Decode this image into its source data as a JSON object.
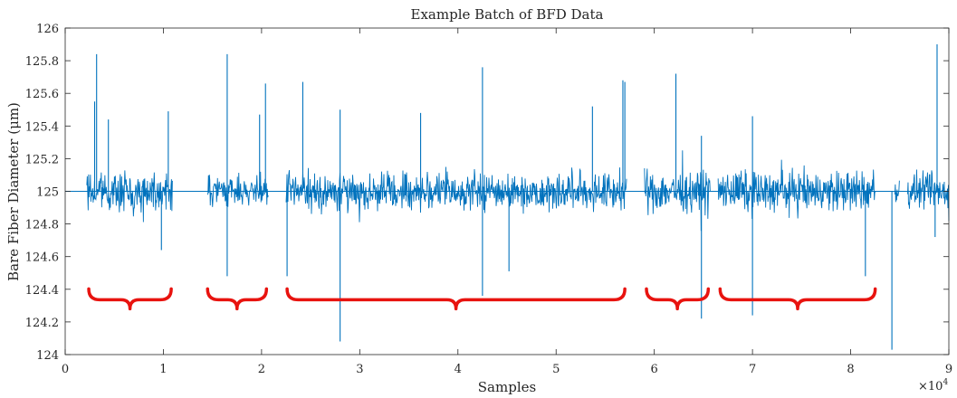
{
  "chart_data": {
    "type": "line",
    "title": "Example Batch of BFD Data",
    "xlabel": "Samples",
    "ylabel": "Bare Fiber Diameter (μm)",
    "x_exponent_label": "×10",
    "x_exponent_power": "4",
    "xlim": [
      0,
      9
    ],
    "ylim": [
      124,
      126
    ],
    "x_ticks": [
      0,
      1,
      2,
      3,
      4,
      5,
      6,
      7,
      8,
      9
    ],
    "x_tick_labels": [
      "0",
      "1",
      "2",
      "3",
      "4",
      "5",
      "6",
      "7",
      "8",
      "9"
    ],
    "y_ticks": [
      124,
      124.2,
      124.4,
      124.6,
      124.8,
      125,
      125.2,
      125.4,
      125.6,
      125.8,
      126
    ],
    "y_tick_labels": [
      "124",
      "124.2",
      "124.4",
      "124.6",
      "124.8",
      "125",
      "125.2",
      "125.4",
      "125.6",
      "125.8",
      "126"
    ],
    "baseline": 125,
    "series_color": "#0072BD",
    "bracket_color": "#e8130f",
    "grid": false,
    "segments": [
      {
        "x_start": 0.22,
        "x_end": 1.1,
        "amplitude": 0.17
      },
      {
        "x_start": 1.45,
        "x_end": 2.07,
        "amplitude": 0.13
      },
      {
        "x_start": 2.25,
        "x_end": 5.72,
        "amplitude": 0.17
      },
      {
        "x_start": 5.9,
        "x_end": 6.57,
        "amplitude": 0.18
      },
      {
        "x_start": 6.65,
        "x_end": 8.25,
        "amplitude": 0.18
      },
      {
        "x_start": 8.45,
        "x_end": 8.5,
        "amplitude": 0.1
      },
      {
        "x_start": 8.58,
        "x_end": 9.0,
        "amplitude": 0.16
      }
    ],
    "spikes": [
      {
        "x": 0.32,
        "y": 125.84
      },
      {
        "x": 0.3,
        "y": 125.55
      },
      {
        "x": 0.44,
        "y": 125.44
      },
      {
        "x": 1.05,
        "y": 125.49
      },
      {
        "x": 0.98,
        "y": 124.64
      },
      {
        "x": 1.65,
        "y": 125.84
      },
      {
        "x": 1.65,
        "y": 124.48
      },
      {
        "x": 1.98,
        "y": 125.47
      },
      {
        "x": 2.04,
        "y": 125.66
      },
      {
        "x": 2.26,
        "y": 124.48
      },
      {
        "x": 2.42,
        "y": 125.67
      },
      {
        "x": 2.8,
        "y": 125.5
      },
      {
        "x": 2.8,
        "y": 124.08
      },
      {
        "x": 3.62,
        "y": 125.48
      },
      {
        "x": 4.25,
        "y": 125.76
      },
      {
        "x": 4.25,
        "y": 124.36
      },
      {
        "x": 4.52,
        "y": 124.51
      },
      {
        "x": 5.37,
        "y": 125.52
      },
      {
        "x": 5.68,
        "y": 125.68
      },
      {
        "x": 5.7,
        "y": 125.67
      },
      {
        "x": 6.22,
        "y": 125.72
      },
      {
        "x": 6.48,
        "y": 125.34
      },
      {
        "x": 6.48,
        "y": 124.22
      },
      {
        "x": 7.0,
        "y": 125.46
      },
      {
        "x": 7.0,
        "y": 124.24
      },
      {
        "x": 8.15,
        "y": 124.48
      },
      {
        "x": 8.42,
        "y": 124.03
      },
      {
        "x": 8.88,
        "y": 125.9
      },
      {
        "x": 8.86,
        "y": 124.72
      }
    ],
    "brackets": [
      {
        "x_start": 0.24,
        "x_end": 1.08,
        "y": 124.38
      },
      {
        "x_start": 1.45,
        "x_end": 2.05,
        "y": 124.38
      },
      {
        "x_start": 2.26,
        "x_end": 5.7,
        "y": 124.38
      },
      {
        "x_start": 5.92,
        "x_end": 6.55,
        "y": 124.38
      },
      {
        "x_start": 6.67,
        "x_end": 8.25,
        "y": 124.38
      }
    ]
  }
}
